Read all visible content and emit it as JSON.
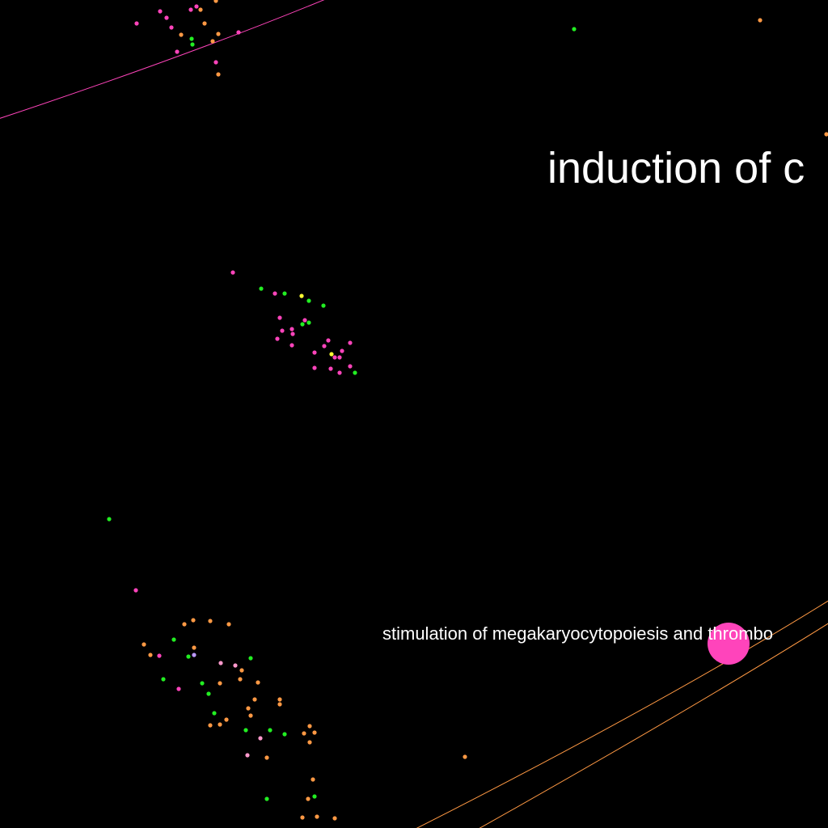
{
  "labels": {
    "large": "induction of c",
    "small": "stimulation of megakaryocytopoiesis and thrombo"
  },
  "colors": {
    "background": "#000000",
    "magenta": "#ff44bb",
    "green": "#22ee22",
    "orange": "#ff9944",
    "yellow": "#ffff33",
    "pink": "#ff99cc",
    "lavender": "#bb99ff",
    "edge_magenta": "#ff44bb",
    "edge_orange": "#ff9944",
    "hub": "#ff44bb"
  }
}
